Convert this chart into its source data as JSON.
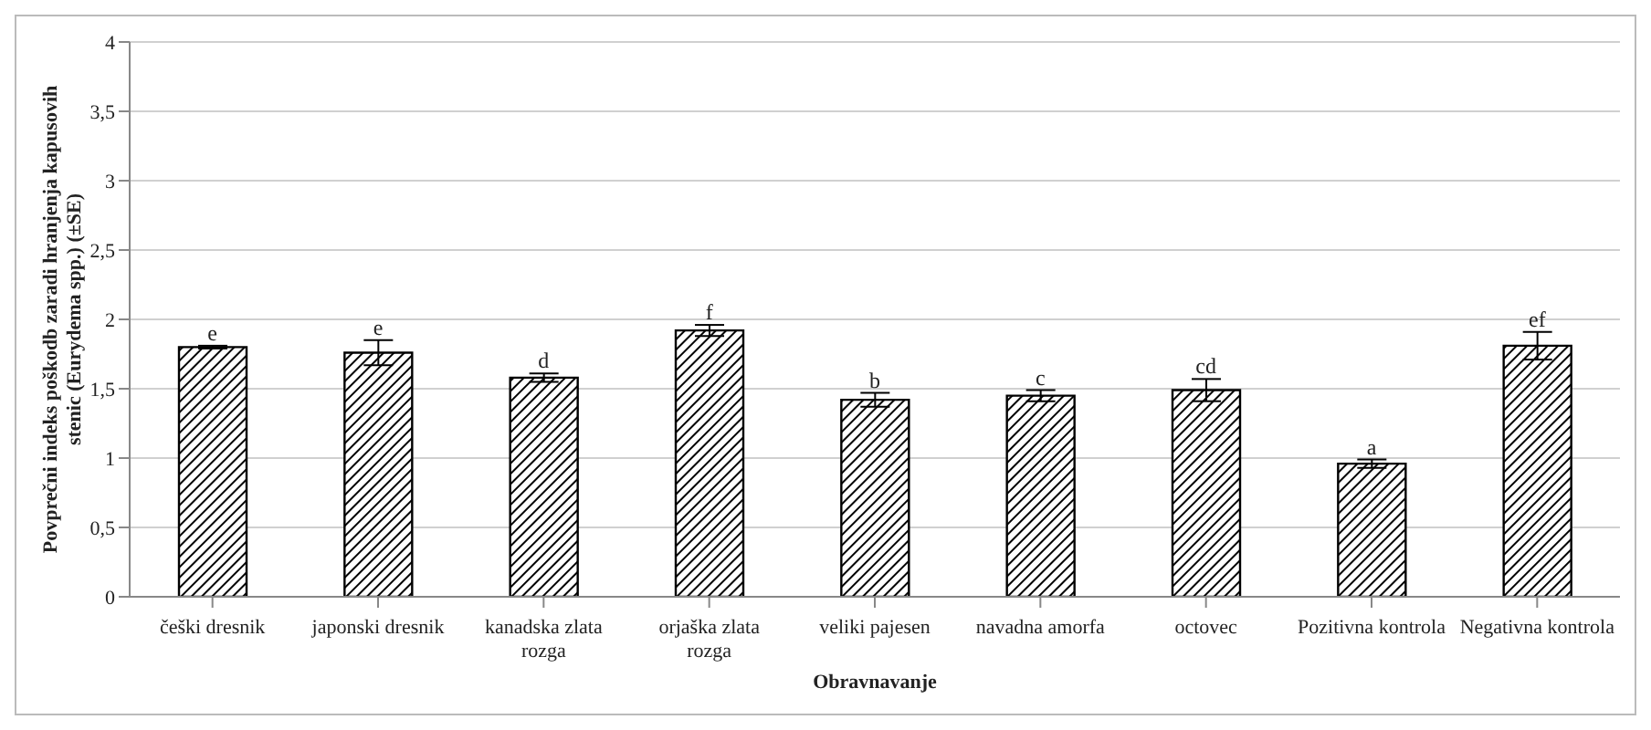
{
  "chart_data": {
    "type": "bar",
    "xlabel": "Obravnavanje",
    "ylabel": "Povprečni indeks poškodb zaradi hranjenja kapusovih stenic (Eurydema spp.) (±SE)",
    "categories": [
      "češki dresnik",
      "japonski dresnik",
      "kanadska zlata rozga",
      "orjaška zlata rozga",
      "veliki pajesen",
      "navadna amorfa",
      "octovec",
      "Pozitivna kontrola",
      "Negativna kontrola"
    ],
    "values": [
      1.8,
      1.76,
      1.58,
      1.92,
      1.42,
      1.45,
      1.49,
      0.96,
      1.81
    ],
    "errors": [
      0.01,
      0.09,
      0.03,
      0.04,
      0.05,
      0.04,
      0.08,
      0.03,
      0.1
    ],
    "color": "#000000",
    "ylim": [
      0,
      4
    ],
    "yticks": [
      0,
      {
        "value": 0.5,
        "label": "0,5"
      },
      1,
      {
        "value": 1.5,
        "label": "1,5"
      },
      2,
      {
        "value": 2.5,
        "label": "2,5"
      },
      3,
      {
        "value": 3.5,
        "label": "3,5"
      },
      4
    ],
    "grid": "y",
    "annotations": [
      {
        "text": "e",
        "x": "češki dresnik",
        "y": 1.81
      },
      {
        "text": "e",
        "x": "japonski dresnik",
        "y": 1.85
      },
      {
        "text": "d",
        "x": "kanadska zlata rozga",
        "y": 1.61
      },
      {
        "text": "f",
        "x": "orjaška zlata rozga",
        "y": 1.96
      },
      {
        "text": "b",
        "x": "veliki pajesen",
        "y": 1.47
      },
      {
        "text": "c",
        "x": "navadna amorfa",
        "y": 1.49
      },
      {
        "text": "cd",
        "x": "octovec",
        "y": 1.57
      },
      {
        "text": "a",
        "x": "Pozitivna kontrola",
        "y": 0.99
      },
      {
        "text": "ef",
        "x": "Negativna kontrola",
        "y": 1.91
      }
    ]
  }
}
